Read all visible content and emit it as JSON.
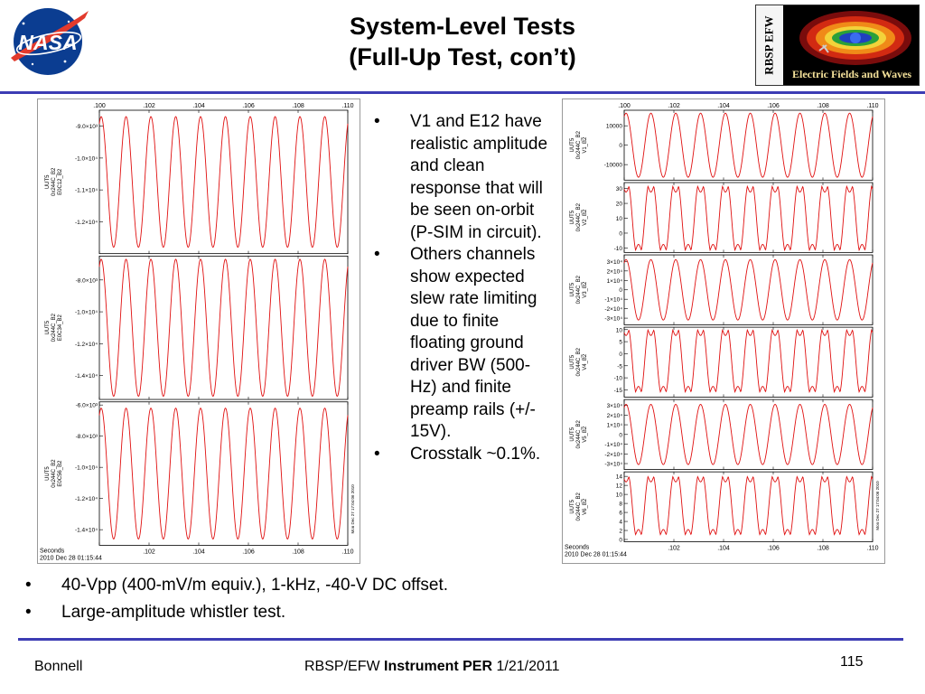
{
  "title": {
    "line1": "System-Level Tests",
    "line2": "(Full-Up Test, con’t)"
  },
  "logos": {
    "nasa_text": "NASA",
    "efw_vertical": "RBSP EFW",
    "efw_caption": "Electric Fields and Waves"
  },
  "bullets_right": [
    "V1 and E12 have realistic amplitude and clean response that will be seen on-orbit (P-SIM in circuit).",
    "Others channels show expected slew rate limiting due to finite floating ground driver  BW (500-Hz) and finite preamp rails (+/- 15V).",
    "Crosstalk ~0.1%."
  ],
  "bullets_bottom": [
    "40-Vpp (400-mV/m equiv.), 1-kHz, -40-V DC offset.",
    "Large-amplitude whistler test."
  ],
  "footer": {
    "left": "Bonnell",
    "center_prefix": "RBSP/EFW ",
    "center_bold": "Instrument PER",
    "center_suffix": " 1/21/2011",
    "page_number": "115"
  },
  "colors": {
    "rule": "#3c3cb4",
    "trace": "#e01010"
  },
  "chart_data": [
    {
      "type": "line",
      "title": "",
      "x_ticks": [
        ".100",
        ".102",
        ".104",
        ".106",
        ".108",
        ".110"
      ],
      "xlim": [
        0.1,
        0.11
      ],
      "time_label_line1": "Seconds",
      "time_label_line2": "2010 Dec 28 01:15:44",
      "side_stamp": "Mon Dec 27 17:04:06 2010",
      "panels": [
        {
          "ylabel": [
            "UUT5",
            "0x244C_B2",
            "E0C12_B2"
          ],
          "ylim": [
            -13000,
            -8500
          ],
          "ticks": [
            "-9.0×10³",
            "-1.0×10⁴",
            "-1.1×10⁴",
            "-1.2×10⁴"
          ],
          "tick_values": [
            -9000,
            -10000,
            -11000,
            -12000
          ],
          "center": -10750,
          "amp": 2050,
          "cycles": 10,
          "shape": "sine"
        },
        {
          "ylabel": [
            "UUT5",
            "0x244C_B2",
            "E0C34_B2"
          ],
          "ylim": [
            -15500,
            -6500
          ],
          "ticks": [
            "-8.0×10³",
            "-1.0×10⁴",
            "-1.2×10⁴",
            "-1.4×10⁴"
          ],
          "tick_values": [
            -8000,
            -10000,
            -12000,
            -14000
          ],
          "center": -11000,
          "amp": 4300,
          "cycles": 10,
          "shape": "sine"
        },
        {
          "ylabel": [
            "UUT5",
            "0x244C_B2",
            "E0C56_B2"
          ],
          "ylim": [
            -15000,
            -5800
          ],
          "ticks": [
            "-6.0×10³",
            "-8.0×10³",
            "-1.0×10⁴",
            "-1.2×10⁴",
            "-1.4×10⁴"
          ],
          "tick_values": [
            -6000,
            -8000,
            -10000,
            -12000,
            -14000
          ],
          "center": -10400,
          "amp": 4200,
          "cycles": 10,
          "shape": "sine"
        }
      ]
    },
    {
      "type": "line",
      "title": "",
      "x_ticks": [
        ".100",
        ".102",
        ".104",
        ".106",
        ".108",
        ".110"
      ],
      "xlim": [
        0.1,
        0.11
      ],
      "time_label_line1": "Seconds",
      "time_label_line2": "2010 Dec 28 01:15:44",
      "side_stamp": "Mon Dec 27 17:04:06 2010",
      "panels": [
        {
          "ylabel": [
            "UUT5",
            "0x244C_B2",
            "V1_B2"
          ],
          "ylim": [
            -18000,
            18000
          ],
          "ticks": [
            "10000",
            "0",
            "-10000"
          ],
          "tick_values": [
            10000,
            0,
            -10000
          ],
          "center": 0,
          "amp": 16500,
          "cycles": 10,
          "shape": "sine"
        },
        {
          "ylabel": [
            "UUT5",
            "0x244C_B2",
            "V2_B2"
          ],
          "ylim": [
            -13,
            34
          ],
          "ticks": [
            "30",
            "20",
            "10",
            "0",
            "-10"
          ],
          "tick_values": [
            30,
            20,
            10,
            0,
            -10
          ],
          "center": 10,
          "amp": 20,
          "cycles": 10,
          "shape": "slew"
        },
        {
          "ylabel": [
            "UUT5",
            "0x244C_B2",
            "V3_B2"
          ],
          "ylim": [
            -37000,
            37000
          ],
          "ticks": [
            "3×10⁴",
            "2×10⁴",
            "1×10⁴",
            "0",
            "-1×10⁴",
            "-2×10⁴",
            "-3×10⁴"
          ],
          "tick_values": [
            30000,
            20000,
            10000,
            0,
            -10000,
            -20000,
            -30000
          ],
          "center": 0,
          "amp": 32000,
          "cycles": 10,
          "shape": "sine"
        },
        {
          "ylabel": [
            "UUT5",
            "0x244C_B2",
            "V4_B2"
          ],
          "ylim": [
            -18,
            11
          ],
          "ticks": [
            "10",
            "5",
            "0",
            "-5",
            "-10",
            "-15"
          ],
          "tick_values": [
            10,
            5,
            0,
            -5,
            -10,
            -15
          ],
          "center": -3,
          "amp": 12,
          "cycles": 10,
          "shape": "slew"
        },
        {
          "ylabel": [
            "UUT5",
            "0x244C_B2",
            "V5_B2"
          ],
          "ylim": [
            -36000,
            36000
          ],
          "ticks": [
            "3×10⁴",
            "2×10⁴",
            "1×10⁴",
            "0",
            "-1×10⁴",
            "-2×10⁴",
            "-3×10⁴"
          ],
          "tick_values": [
            30000,
            20000,
            10000,
            0,
            -10000,
            -20000,
            -30000
          ],
          "center": 0,
          "amp": 31000,
          "cycles": 10,
          "shape": "sine"
        },
        {
          "ylabel": [
            "UUT5",
            "0x244C_B2",
            "V6_B2"
          ],
          "ylim": [
            -0.5,
            15
          ],
          "ticks": [
            "14",
            "12",
            "10",
            "8",
            "6",
            "4",
            "2",
            "0"
          ],
          "tick_values": [
            14,
            12,
            10,
            8,
            6,
            4,
            2,
            0
          ],
          "center": 7.5,
          "amp": 6,
          "cycles": 10,
          "shape": "slew"
        }
      ]
    }
  ]
}
